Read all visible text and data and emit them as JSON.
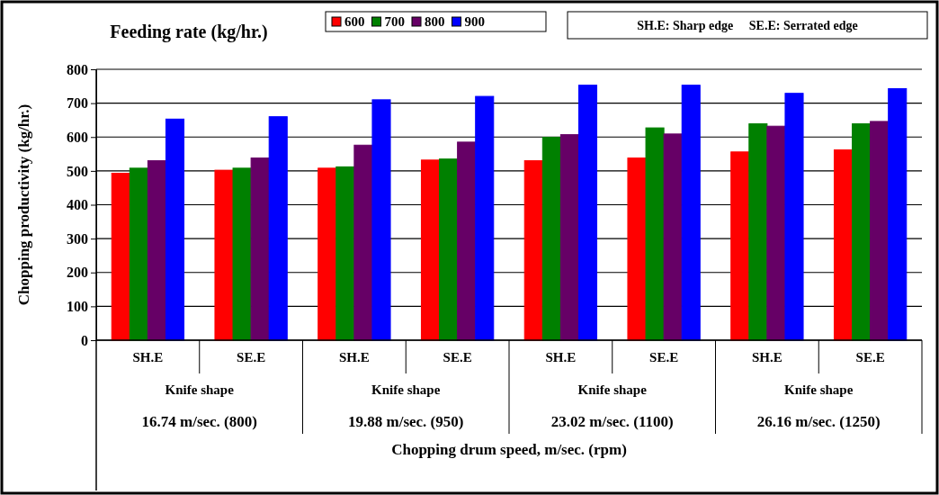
{
  "chart_data": {
    "type": "bar",
    "legend_title": "Feeding rate (kg/hr.)",
    "ylabel": "Chopping productivity (kg/hr.)",
    "xlabel": "Chopping drum speed, m/sec. (rpm)",
    "categories": [
      "SH.E",
      "SE.E",
      "SH.E",
      "SE.E",
      "SH.E",
      "SE.E",
      "SH.E",
      "SE.E"
    ],
    "series": [
      {
        "name": "600",
        "color": "#ff0000",
        "values": [
          493,
          502,
          508,
          532,
          530,
          538,
          556,
          562
        ]
      },
      {
        "name": "700",
        "color": "#008000",
        "values": [
          508,
          508,
          512,
          535,
          599,
          627,
          639,
          639
        ]
      },
      {
        "name": "800",
        "color": "#660066",
        "values": [
          530,
          538,
          576,
          585,
          607,
          609,
          632,
          646
        ]
      },
      {
        "name": "900",
        "color": "#0000ff",
        "values": [
          653,
          660,
          710,
          720,
          753,
          753,
          729,
          743
        ]
      }
    ],
    "ylim": [
      0,
      800
    ],
    "yticks": [
      0,
      100,
      200,
      300,
      400,
      500,
      600,
      700,
      800
    ],
    "grid": "y",
    "legend": "top",
    "annotations": [
      "SH.E: Sharp edge     SE.E: Serrated edge",
      "Knife shape",
      "Knife shape",
      "Knife shape",
      "Knife shape",
      "16.74 m/sec. (800)",
      "19.88 m/sec. (950)",
      "23.02 m/sec. (1100)",
      "26.16 m/sec. (1250)"
    ]
  }
}
